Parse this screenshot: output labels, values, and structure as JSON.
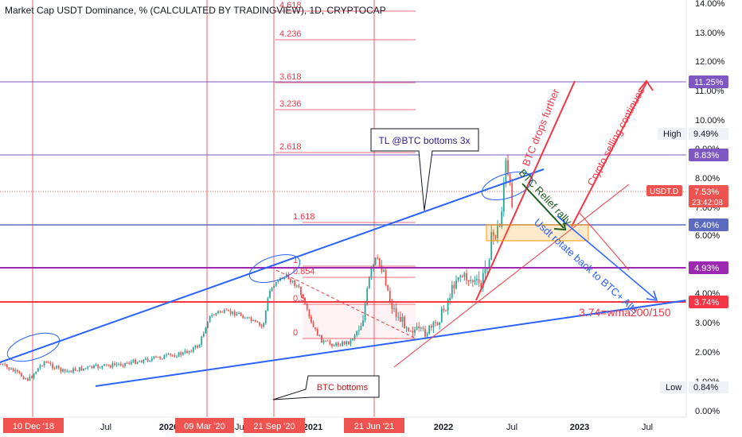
{
  "chart_data": {
    "type": "line",
    "title": "Market Cap USDT Dominance, % (CALCULATED BY TRADINGVIEW), 1D, CRYPTOCAP",
    "symbol": "USDT.D",
    "last_value_label": "7.53%",
    "countdown": "23:42:08",
    "high": {
      "label": "High",
      "value": "9.49%"
    },
    "low": {
      "label": "Low",
      "value": "0.84%"
    },
    "y_ticks": [
      "14.00%",
      "13.00%",
      "12.00%",
      "11.00%",
      "10.00%",
      "9.00%",
      "8.00%",
      "7.00%",
      "6.00%",
      "5.00%",
      "4.00%",
      "3.50%",
      "3.00%",
      "2.00%",
      "1.00%",
      "0.00%"
    ],
    "x_ticks": [
      "Jul",
      "2020",
      "Jul",
      "2021",
      "Jul",
      "2022",
      "Jul",
      "2023",
      "Jul"
    ],
    "date_labels": [
      "10 Dec '18",
      "09 Mar '20",
      "21 Sep '20",
      "21 Jun '21"
    ],
    "level_labels": [
      {
        "text": "11.25%",
        "color": "#7e57c2"
      },
      {
        "text": "8.83%",
        "color": "#7e57c2"
      },
      {
        "text": "6.40%",
        "color": "#5c6bc0"
      },
      {
        "text": "4.93%",
        "color": "#9c27b0"
      },
      {
        "text": "3.74%",
        "color": "#f23645"
      }
    ],
    "fib_levels": [
      "4.618",
      "4.236",
      "3.618",
      "3.236",
      "2.618",
      "1.618",
      "1",
      "0.854",
      "0.5",
      "0"
    ],
    "annotations": {
      "tl_callout": "TL @BTC bottoms 3x",
      "btc_bottoms": "BTC bottoms",
      "btc_drops": "BTC drops further",
      "crypto_selling": "Crypto selling continues",
      "relief_rally": "BTC Relief rally",
      "usdt_rotate": "Usdt rotate back to BTC+ Alts",
      "wma_note": "3.74=wma200/150"
    },
    "colors": {
      "up": "#26a69a",
      "down": "#ef5350",
      "trend": "#2962ff",
      "fib": "#f23645"
    },
    "grid": false
  }
}
